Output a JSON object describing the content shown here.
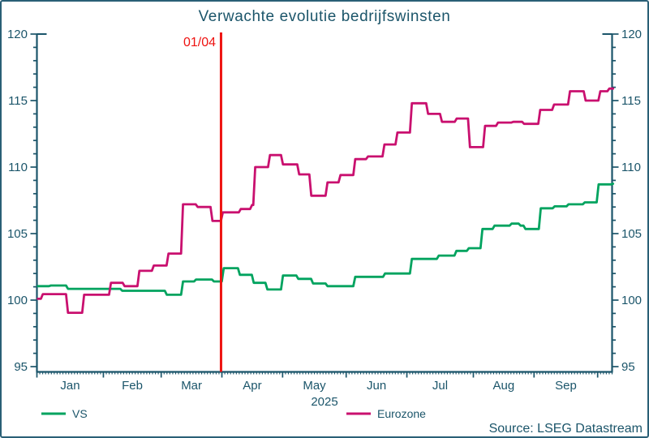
{
  "chart_data": {
    "type": "line",
    "title": "Verwachte evolutie bedrijfswinsten",
    "x_axis": {
      "year_label": "2025",
      "domain_days": [
        0,
        199
      ],
      "month_labels": [
        "Jan",
        "Feb",
        "Mar",
        "Apr",
        "May",
        "Jun",
        "Jul",
        "Aug",
        "Sep"
      ],
      "month_label_days": [
        11.5,
        33,
        53.5,
        74.5,
        96,
        117.5,
        139.5,
        161.5,
        183
      ],
      "month_boundary_days": [
        0,
        23,
        43,
        64,
        85,
        107,
        128,
        151,
        172,
        194
      ],
      "daily_minor_ticks": true
    },
    "y_axis": {
      "min": 95,
      "max": 120,
      "major_step": 5,
      "minor_step": 1,
      "major_ticks": [
        95,
        100,
        105,
        110,
        115,
        120
      ],
      "dual_sided": true
    },
    "annotation": {
      "label": "01/04",
      "day": 63.7,
      "color": "#ee1311"
    },
    "series": [
      {
        "name": "VS",
        "color": "#00a35f",
        "points": [
          [
            0,
            101.05
          ],
          [
            4.5,
            101.1
          ],
          [
            10.4,
            100.85
          ],
          [
            29.2,
            100.7
          ],
          [
            44.6,
            100.4
          ],
          [
            50.2,
            101.4
          ],
          [
            54.7,
            101.55
          ],
          [
            60.9,
            101.4
          ],
          [
            64.3,
            102.4
          ],
          [
            69.9,
            101.9
          ],
          [
            74.7,
            101.3
          ],
          [
            79.4,
            100.8
          ],
          [
            84.8,
            101.85
          ],
          [
            90.1,
            101.6
          ],
          [
            95.2,
            101.25
          ],
          [
            100.2,
            101.05
          ],
          [
            109.8,
            101.75
          ],
          [
            120.1,
            102.0
          ],
          [
            129.4,
            103.1
          ],
          [
            138.7,
            103.35
          ],
          [
            144.8,
            103.7
          ],
          [
            149.1,
            103.9
          ],
          [
            153.8,
            105.35
          ],
          [
            158.0,
            105.6
          ],
          [
            163.9,
            105.75
          ],
          [
            167.0,
            105.6
          ],
          [
            168.7,
            105.35
          ],
          [
            174.0,
            106.9
          ],
          [
            178.8,
            107.05
          ],
          [
            183.6,
            107.2
          ],
          [
            189.2,
            107.35
          ],
          [
            194.0,
            108.7
          ],
          [
            199,
            108.75
          ]
        ]
      },
      {
        "name": "Eurozone",
        "color": "#c9106f",
        "points": [
          [
            0,
            100.1
          ],
          [
            1.7,
            100.45
          ],
          [
            10.4,
            99.05
          ],
          [
            16.0,
            100.4
          ],
          [
            25.3,
            101.3
          ],
          [
            30.0,
            101.05
          ],
          [
            35.1,
            102.2
          ],
          [
            40.1,
            102.6
          ],
          [
            45.2,
            103.5
          ],
          [
            50.2,
            107.2
          ],
          [
            55.3,
            107.0
          ],
          [
            60.4,
            105.95
          ],
          [
            64.0,
            106.6
          ],
          [
            70.2,
            106.85
          ],
          [
            74.1,
            107.15
          ],
          [
            75.2,
            110.0
          ],
          [
            80.3,
            110.9
          ],
          [
            84.8,
            110.2
          ],
          [
            90.4,
            109.45
          ],
          [
            94.6,
            107.85
          ],
          [
            100.2,
            108.85
          ],
          [
            104.7,
            109.4
          ],
          [
            109.8,
            110.6
          ],
          [
            114.2,
            110.8
          ],
          [
            119.9,
            111.7
          ],
          [
            124.4,
            112.6
          ],
          [
            129.4,
            114.8
          ],
          [
            135.0,
            114.0
          ],
          [
            139.8,
            113.4
          ],
          [
            144.9,
            113.65
          ],
          [
            149.5,
            111.5
          ],
          [
            154.7,
            113.1
          ],
          [
            159.2,
            113.35
          ],
          [
            164.5,
            113.4
          ],
          [
            168.2,
            113.25
          ],
          [
            173.8,
            114.3
          ],
          [
            178.6,
            114.7
          ],
          [
            184.1,
            115.7
          ],
          [
            189.5,
            115.0
          ],
          [
            194.6,
            115.7
          ],
          [
            197.7,
            115.9
          ],
          [
            199,
            115.9
          ]
        ]
      }
    ],
    "legend": [
      "VS",
      "Eurozone"
    ],
    "legend_position": "bottom"
  },
  "footer": {
    "source": "Source: LSEG Datastream"
  },
  "colors": {
    "axis": "#1b556a",
    "text": "#1b556a",
    "border": "#2a5f76",
    "background": "#ffffff",
    "vs_green": "#00a35f",
    "eurozone_pink": "#c9106f",
    "annotation_red": "#ee1311"
  }
}
